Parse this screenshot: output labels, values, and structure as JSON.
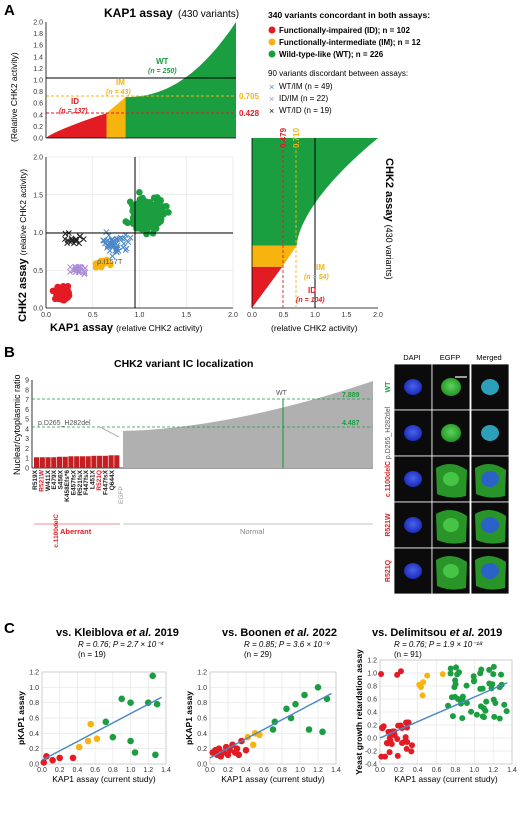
{
  "panel_labels": [
    "A",
    "B",
    "C"
  ],
  "panelA": {
    "colors": {
      "id": "#e31b23",
      "im": "#f7b40f",
      "wt": "#1a9e3f",
      "disc_wt_im": "#4a86c8",
      "disc_id_im": "#a98bd6",
      "disc_wt_id": "#222222"
    },
    "kap1": {
      "title": "KAP1 assay",
      "subtitle": "(430 variants)",
      "ylabel": "(Relative CHK2 activity)",
      "yticks": [
        "0.0",
        "0.2",
        "0.4",
        "0.6",
        "0.8",
        "1.0",
        "1.2",
        "1.4",
        "1.6",
        "1.8",
        "2.0"
      ],
      "thresholds": [
        "0.705",
        "0.428"
      ],
      "wt_label": "WT",
      "wt_n": "(n = 250)",
      "im_label": "IM",
      "im_n": "(n = 43)",
      "id_label": "ID",
      "id_n": "(n = 137)"
    },
    "legend": {
      "header": "340 variants concordant in both assays:",
      "items": [
        "Functionally-impaired (ID); n = 102",
        "Functionally-intermediate (IM); n = 12",
        "Wild-type-like (WT); n = 226"
      ],
      "disc_header": "90 variants discordant between assays:",
      "disc_items": [
        "WT/IM (n = 49)",
        "ID/IM (n = 22)",
        "WT/ID (n = 19)"
      ]
    },
    "scatter": {
      "ylabel_bold": "CHK2 assay",
      "ylabel_rest": "(relative CHK2 activity)",
      "xlabel_bold": "KAP1 assay",
      "xlabel_rest": "(relative CHK2 activity)",
      "annotation": "p.I157T",
      "ticks": [
        "0.0",
        "0.5",
        "1.0",
        "1.5",
        "2.0"
      ]
    },
    "chk2": {
      "title": "CHK2 assay",
      "subtitle": "(430 variants)",
      "xlabel": "(relative CHK2 activity)",
      "thresholds": [
        "0.479",
        "0.710"
      ],
      "xticks": [
        "0.0",
        "0.5",
        "1.0",
        "1.5",
        "2.0"
      ],
      "wt_label": "WT",
      "wt_n": "(n = 272)",
      "im_label": "IM",
      "im_n": "(n = 54)",
      "id_label": "ID",
      "id_n": "(n = 104)"
    }
  },
  "panelB": {
    "title": "CHK2 variant IC localization",
    "ylabel": "Nuclear/cytoplasmic ratio",
    "yticks": [
      "0",
      "1",
      "2",
      "3",
      "4",
      "5",
      "6",
      "7",
      "8",
      "9"
    ],
    "line_values": [
      "7.889",
      "4.487"
    ],
    "wt_label": "WT",
    "ann_label": "p.D265_H282del",
    "aberrant_label": "Aberrant",
    "normal_label": "Normal",
    "egfp_label": "EGFP",
    "variant_labels": [
      "R519X",
      "R521W",
      "W411X",
      "E479X",
      "S456X",
      "K458Efs*6",
      "E457fsX",
      "R521fsX",
      "F447fsX",
      "L451X",
      "R521Q",
      "F447fsX",
      "Q644X"
    ],
    "variant_red": [
      false,
      true,
      false,
      false,
      false,
      false,
      false,
      false,
      false,
      false,
      true,
      false,
      false
    ],
    "c1100_label": "c.1100delC",
    "image_cols": [
      "DAPI",
      "EGFP",
      "Merged"
    ],
    "image_rows": [
      "WT",
      "p.D265_H282del",
      "c.1100delC",
      "R521W",
      "R521Q"
    ],
    "image_row_colors": [
      "#1a9e3f",
      "#555555",
      "#e31b23",
      "#e31b23",
      "#e31b23"
    ]
  },
  "panelC": {
    "plots": [
      {
        "title_a": "vs. Kleiblova",
        "title_b": " et al.",
        "title_c": " 2019",
        "stat1": "R = 0.76; P = 2.7 × 10⁻⁴",
        "stat2": "(n = 19)",
        "ylabel": "pKAP1 assay",
        "xlabel": "KAP1 assay (current study)",
        "yticks": [
          "0.0",
          "0.2",
          "0.4",
          "0.6",
          "0.8",
          "1.0",
          "1.2"
        ],
        "xticks": [
          "0.0",
          "0.2",
          "0.4",
          "0.6",
          "0.8",
          "1.0",
          "1.2",
          "1.4"
        ]
      },
      {
        "title_a": "vs. Boonen",
        "title_b": " et al.",
        "title_c": " 2022",
        "stat1": "R = 0.85; P = 3.6 × 10⁻⁹",
        "stat2": "(n = 29)",
        "ylabel": "pKAP1 assay",
        "xlabel": "KAP1 assay (current study)",
        "yticks": [
          "0.0",
          "0.2",
          "0.4",
          "0.6",
          "0.8",
          "1.0",
          "1.2"
        ],
        "xticks": [
          "0.0",
          "0.2",
          "0.4",
          "0.6",
          "0.8",
          "1.0",
          "1.2",
          "1.4"
        ]
      },
      {
        "title_a": "vs. Delimitsou",
        "title_b": " et al.",
        "title_c": " 2019",
        "stat1": "R = 0.76; P = 1.9 × 10⁻¹⁸",
        "stat2": "(n = 91)",
        "ylabel": "Yeast growth retardation assay",
        "xlabel": "KAP1 assay (current study)",
        "yticks": [
          "-0.4",
          "-0.2",
          "0.0",
          "0.2",
          "0.4",
          "0.6",
          "0.8",
          "1.0",
          "1.2"
        ],
        "xticks": [
          "0.0",
          "0.2",
          "0.4",
          "0.6",
          "0.8",
          "1.0",
          "1.2",
          "1.4"
        ]
      }
    ]
  },
  "chart_data": [
    {
      "type": "bar",
      "title": "KAP1 assay",
      "ylabel": "(Relative CHK2 activity)",
      "ylim": [
        0,
        2.0
      ],
      "thresholds": [
        0.705,
        0.428
      ],
      "groups": [
        {
          "name": "ID",
          "count": 137,
          "range": [
            0.0,
            0.428
          ]
        },
        {
          "name": "IM",
          "count": 43,
          "range": [
            0.428,
            0.705
          ]
        },
        {
          "name": "WT",
          "count": 250,
          "range": [
            0.705,
            2.0
          ]
        }
      ]
    },
    {
      "type": "scatter",
      "xlabel": "KAP1 assay (relative CHK2 activity)",
      "ylabel": "CHK2 assay (relative CHK2 activity)",
      "xlim": [
        0,
        2.0
      ],
      "ylim": [
        0,
        2.0
      ],
      "series": [
        {
          "name": "Functionally-impaired (ID); n = 102",
          "count": 102,
          "center": [
            0.18,
            0.2
          ]
        },
        {
          "name": "Functionally-intermediate (IM); n = 12",
          "count": 12,
          "center": [
            0.6,
            0.58
          ]
        },
        {
          "name": "Wild-type-like (WT); n = 226",
          "count": 226,
          "center": [
            1.1,
            1.25
          ]
        },
        {
          "name": "WT/IM (n = 49)",
          "count": 49,
          "center": [
            0.75,
            0.85
          ]
        },
        {
          "name": "ID/IM (n = 22)",
          "count": 22,
          "center": [
            0.35,
            0.5
          ]
        },
        {
          "name": "WT/ID (n = 19)",
          "count": 19,
          "center": [
            0.3,
            0.9
          ]
        }
      ]
    },
    {
      "type": "bar",
      "title": "CHK2 assay",
      "xlabel": "(relative CHK2 activity)",
      "xlim": [
        0,
        2.0
      ],
      "thresholds": [
        0.479,
        0.71
      ],
      "groups": [
        {
          "name": "ID",
          "count": 104,
          "range": [
            0.0,
            0.479
          ]
        },
        {
          "name": "IM",
          "count": 54,
          "range": [
            0.479,
            0.71
          ]
        },
        {
          "name": "WT",
          "count": 272,
          "range": [
            0.71,
            2.0
          ]
        }
      ]
    },
    {
      "type": "bar",
      "title": "CHK2 variant IC localization",
      "ylabel": "Nuclear/cytoplasmic ratio",
      "ylim": [
        0,
        9
      ],
      "reference_lines": [
        7.889,
        4.487
      ],
      "aberrant_values": [
        1.1,
        1.1,
        1.1,
        1.1,
        1.15,
        1.15,
        1.2,
        1.2,
        1.2,
        1.2,
        1.25,
        1.25,
        1.25,
        1.3,
        1.3
      ],
      "normal_range": [
        3.8,
        8.9
      ],
      "highlighted": [
        {
          "name": "WT",
          "value": 7.889
        },
        {
          "name": "p.D265_H282del",
          "value": 4.487
        }
      ]
    },
    {
      "type": "scatter",
      "title": "vs. Kleiblova et al. 2019",
      "xlabel": "KAP1 assay (current study)",
      "ylabel": "pKAP1 assay",
      "xlim": [
        0,
        1.4
      ],
      "ylim": [
        0,
        1.2
      ],
      "points": [
        {
          "x": 0.02,
          "y": 0.02,
          "c": "red"
        },
        {
          "x": 0.05,
          "y": 0.1,
          "c": "red"
        },
        {
          "x": 0.12,
          "y": 0.05,
          "c": "red"
        },
        {
          "x": 0.2,
          "y": 0.08,
          "c": "red"
        },
        {
          "x": 0.35,
          "y": 0.08,
          "c": "red"
        },
        {
          "x": 0.42,
          "y": 0.22,
          "c": "orange"
        },
        {
          "x": 0.52,
          "y": 0.3,
          "c": "orange"
        },
        {
          "x": 0.55,
          "y": 0.52,
          "c": "orange"
        },
        {
          "x": 0.62,
          "y": 0.33,
          "c": "orange"
        },
        {
          "x": 0.72,
          "y": 0.55,
          "c": "green"
        },
        {
          "x": 0.8,
          "y": 0.35,
          "c": "green"
        },
        {
          "x": 0.9,
          "y": 0.85,
          "c": "green"
        },
        {
          "x": 1.0,
          "y": 0.8,
          "c": "green"
        },
        {
          "x": 1.0,
          "y": 0.3,
          "c": "green"
        },
        {
          "x": 1.05,
          "y": 0.15,
          "c": "green"
        },
        {
          "x": 1.2,
          "y": 0.8,
          "c": "green"
        },
        {
          "x": 1.25,
          "y": 1.15,
          "c": "green"
        },
        {
          "x": 1.28,
          "y": 0.12,
          "c": "green"
        },
        {
          "x": 1.3,
          "y": 0.78,
          "c": "green"
        }
      ],
      "fit": [
        [
          0.0,
          0.05
        ],
        [
          1.35,
          0.87
        ]
      ]
    },
    {
      "type": "scatter",
      "title": "vs. Boonen et al. 2022",
      "xlabel": "KAP1 assay (current study)",
      "ylabel": "pKAP1 assay",
      "xlim": [
        0,
        1.4
      ],
      "ylim": [
        0,
        1.2
      ],
      "points": [
        {
          "x": 0.03,
          "y": 0.15,
          "c": "red"
        },
        {
          "x": 0.06,
          "y": 0.18,
          "c": "red"
        },
        {
          "x": 0.08,
          "y": 0.12,
          "c": "red"
        },
        {
          "x": 0.1,
          "y": 0.2,
          "c": "red"
        },
        {
          "x": 0.12,
          "y": 0.1,
          "c": "red"
        },
        {
          "x": 0.15,
          "y": 0.15,
          "c": "red"
        },
        {
          "x": 0.18,
          "y": 0.22,
          "c": "red"
        },
        {
          "x": 0.2,
          "y": 0.12,
          "c": "red"
        },
        {
          "x": 0.22,
          "y": 0.18,
          "c": "red"
        },
        {
          "x": 0.25,
          "y": 0.25,
          "c": "red"
        },
        {
          "x": 0.28,
          "y": 0.15,
          "c": "red"
        },
        {
          "x": 0.3,
          "y": 0.2,
          "c": "red"
        },
        {
          "x": 0.32,
          "y": 0.12,
          "c": "red"
        },
        {
          "x": 0.35,
          "y": 0.3,
          "c": "red"
        },
        {
          "x": 0.4,
          "y": 0.18,
          "c": "red"
        },
        {
          "x": 0.42,
          "y": 0.35,
          "c": "orange"
        },
        {
          "x": 0.48,
          "y": 0.25,
          "c": "orange"
        },
        {
          "x": 0.5,
          "y": 0.4,
          "c": "orange"
        },
        {
          "x": 0.55,
          "y": 0.38,
          "c": "orange"
        },
        {
          "x": 0.7,
          "y": 0.45,
          "c": "green"
        },
        {
          "x": 0.72,
          "y": 0.55,
          "c": "green"
        },
        {
          "x": 0.85,
          "y": 0.72,
          "c": "green"
        },
        {
          "x": 0.9,
          "y": 0.6,
          "c": "green"
        },
        {
          "x": 0.95,
          "y": 0.78,
          "c": "green"
        },
        {
          "x": 1.05,
          "y": 0.9,
          "c": "green"
        },
        {
          "x": 1.1,
          "y": 0.45,
          "c": "green"
        },
        {
          "x": 1.2,
          "y": 1.0,
          "c": "green"
        },
        {
          "x": 1.25,
          "y": 0.42,
          "c": "green"
        },
        {
          "x": 1.3,
          "y": 0.85,
          "c": "green"
        }
      ],
      "fit": [
        [
          0.0,
          0.08
        ],
        [
          1.35,
          0.92
        ]
      ]
    },
    {
      "type": "scatter",
      "title": "vs. Delimitsou et al. 2019",
      "xlabel": "KAP1 assay (current study)",
      "ylabel": "Yeast growth retardation assay",
      "xlim": [
        0,
        1.4
      ],
      "ylim": [
        -0.4,
        1.2
      ],
      "n": 91,
      "groups": [
        {
          "c": "red",
          "count": 33,
          "x_range": [
            0.0,
            0.35
          ],
          "y_range": [
            -0.3,
            0.25
          ]
        },
        {
          "c": "red",
          "count": 3,
          "x_range": [
            0.0,
            0.25
          ],
          "y_range": [
            0.95,
            1.05
          ]
        },
        {
          "c": "orange",
          "count": 6,
          "x_range": [
            0.4,
            0.7
          ],
          "y_range": [
            0.65,
            1.0
          ]
        },
        {
          "c": "green",
          "count": 49,
          "x_range": [
            0.7,
            1.35
          ],
          "y_range": [
            0.3,
            1.1
          ]
        }
      ],
      "fit": [
        [
          0.0,
          0.0
        ],
        [
          1.35,
          0.85
        ]
      ]
    }
  ]
}
